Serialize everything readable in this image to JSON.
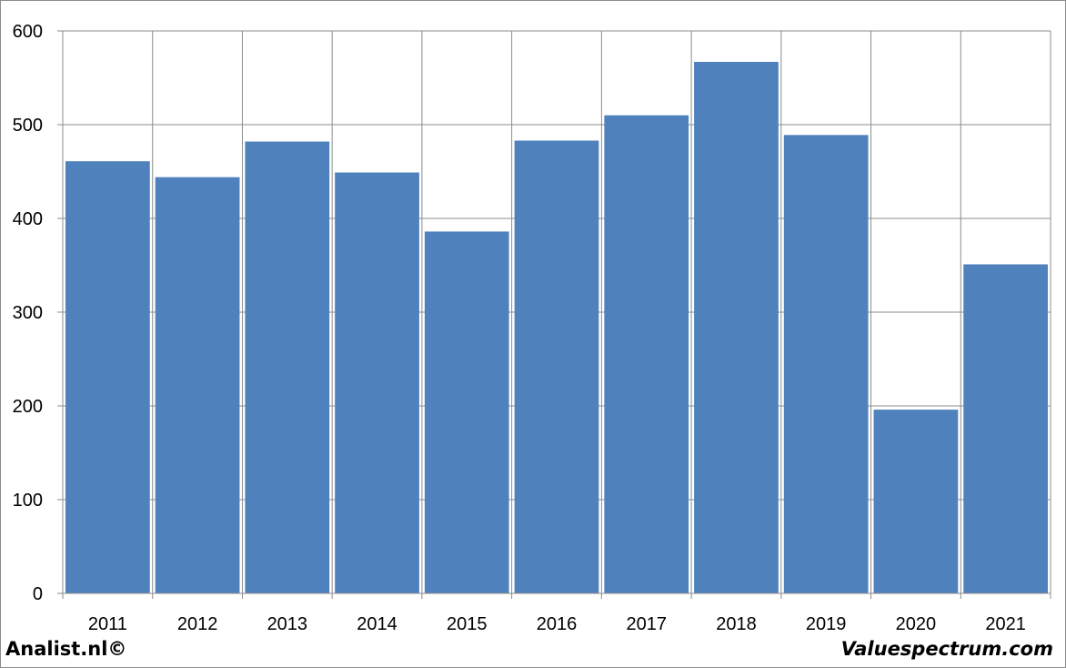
{
  "chart_data": {
    "type": "bar",
    "categories": [
      "2011",
      "2012",
      "2013",
      "2014",
      "2015",
      "2016",
      "2017",
      "2018",
      "2019",
      "2020",
      "2021"
    ],
    "values": [
      461,
      444,
      482,
      449,
      386,
      483,
      510,
      567,
      489,
      196,
      351
    ],
    "title": "",
    "xlabel": "",
    "ylabel": "",
    "ylim": [
      0,
      600
    ],
    "yticks": [
      "0",
      "100",
      "200",
      "300",
      "400",
      "500",
      "600"
    ],
    "grid": true,
    "legend": "none",
    "bar_color": "#4f81bd",
    "grid_color": "#8c8c8c"
  },
  "footer": {
    "left": "Analist.nl©",
    "right": "Valuespectrum.com"
  }
}
